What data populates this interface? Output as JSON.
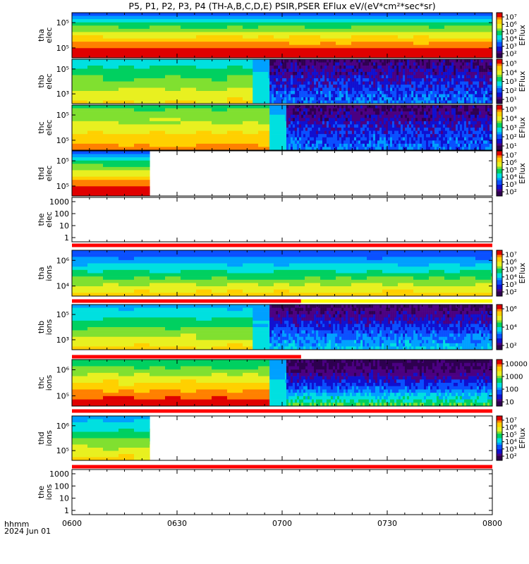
{
  "title": "P5, P1, P2, P3, P4 (TH-A,B,C,D,E) PSIR,PSER EFlux eV/(eV*cm²*sec*sr)",
  "time_axis": {
    "label_top": "hhmm",
    "label_bottom": "2024 Jun 01",
    "ticks": [
      "0600",
      "0630",
      "0700",
      "0730",
      "0800"
    ]
  },
  "colors": {
    "colormap": [
      "#2e0050",
      "#4b0082",
      "#1010d0",
      "#0a50ff",
      "#00a0ff",
      "#00e0e0",
      "#00d060",
      "#80e030",
      "#e8f020",
      "#ffd000",
      "#ff8000",
      "#e00000"
    ],
    "bar_red": "#ff0000",
    "bar_yellow": "#ffff00"
  },
  "chart_data": [
    {
      "type": "heatmap",
      "probe": "tha",
      "species": "elec",
      "ylabel": [
        "tha",
        "elec"
      ],
      "ytick_labels": [
        "10⁵",
        "10⁵"
      ],
      "colorbar": {
        "label": "EFlux",
        "tick_labels": [
          "10⁷",
          "10⁶",
          "10⁵",
          "10⁴",
          "10³",
          "10²"
        ]
      },
      "data_coverage": [
        0,
        1
      ],
      "segments": [
        {
          "from": 0.0,
          "to": 1.0,
          "profile": "smooth_high"
        }
      ],
      "mode_bar": null
    },
    {
      "type": "heatmap",
      "probe": "thb",
      "species": "elec",
      "ylabel": [
        "thb",
        "elec"
      ],
      "ytick_labels": [
        "10⁵",
        "10³"
      ],
      "colorbar": {
        "label": "EFlux",
        "tick_labels": [
          "10⁵",
          "10⁴",
          "10³",
          "10²",
          "10¹"
        ]
      },
      "data_coverage": [
        0,
        1
      ],
      "segments": [
        {
          "from": 0.0,
          "to": 0.43,
          "profile": "mid"
        },
        {
          "from": 0.43,
          "to": 0.47,
          "profile": "transition"
        },
        {
          "from": 0.47,
          "to": 1.0,
          "profile": "noisy_low"
        }
      ],
      "mode_bar": null
    },
    {
      "type": "heatmap",
      "probe": "thc",
      "species": "elec",
      "ylabel": [
        "thc",
        "elec"
      ],
      "ytick_labels": [
        "10⁵",
        "10⁵"
      ],
      "colorbar": {
        "label": "EFlux",
        "tick_labels": [
          "10⁵",
          "10⁴",
          "10³",
          "10²",
          "10¹"
        ]
      },
      "data_coverage": [
        0,
        1
      ],
      "segments": [
        {
          "from": 0.0,
          "to": 0.47,
          "profile": "mid_high"
        },
        {
          "from": 0.47,
          "to": 0.51,
          "profile": "transition"
        },
        {
          "from": 0.51,
          "to": 1.0,
          "profile": "noisy_low"
        }
      ],
      "mode_bar": null
    },
    {
      "type": "heatmap",
      "probe": "thd",
      "species": "elec",
      "ylabel": [
        "thd",
        "elec"
      ],
      "ytick_labels": [
        "10⁵",
        "10⁵"
      ],
      "colorbar": {
        "label": "EFlux",
        "tick_labels": [
          "10⁷",
          "10⁶",
          "10⁵",
          "10⁴",
          "10³",
          "10²"
        ]
      },
      "data_coverage": [
        0,
        0.185
      ],
      "segments": [
        {
          "from": 0.0,
          "to": 0.185,
          "profile": "smooth_high"
        }
      ],
      "mode_bar": null
    },
    {
      "type": "empty",
      "probe": "the",
      "species": "elec",
      "ylabel": [
        "the",
        "elec"
      ],
      "ytick_labels": [
        "1000",
        "100",
        "10",
        "1"
      ],
      "ylim": [
        1,
        1000
      ],
      "colorbar": null,
      "mode_bar": {
        "segments": [
          {
            "from": 0,
            "to": 1,
            "color": "red"
          }
        ]
      }
    },
    {
      "type": "heatmap",
      "probe": "tha",
      "species": "ions",
      "ylabel": [
        "tha",
        "ions"
      ],
      "ytick_labels": [
        "10⁶",
        "10⁴"
      ],
      "colorbar": {
        "label": "EFlux",
        "tick_labels": [
          "10⁷",
          "10⁶",
          "10⁵",
          "10⁴",
          "10³",
          "10²"
        ]
      },
      "data_coverage": [
        0,
        1
      ],
      "segments": [
        {
          "from": 0.0,
          "to": 1.0,
          "profile": "ion_smooth"
        }
      ],
      "mode_bar": {
        "segments": [
          {
            "from": 0,
            "to": 0.545,
            "color": "red"
          },
          {
            "from": 0.545,
            "to": 1,
            "color": "yellow"
          }
        ]
      }
    },
    {
      "type": "heatmap",
      "probe": "thb",
      "species": "ions",
      "ylabel": [
        "thb",
        "ions"
      ],
      "ytick_labels": [
        "10⁵",
        "10³"
      ],
      "colorbar": {
        "label": "",
        "tick_labels": [
          "10⁶",
          "10⁴",
          "10²"
        ]
      },
      "data_coverage": [
        0,
        1
      ],
      "segments": [
        {
          "from": 0.0,
          "to": 0.43,
          "profile": "ion_mid"
        },
        {
          "from": 0.43,
          "to": 0.47,
          "profile": "transition"
        },
        {
          "from": 0.47,
          "to": 1.0,
          "profile": "ion_noisy"
        }
      ],
      "mode_bar": {
        "segments": [
          {
            "from": 0,
            "to": 0.545,
            "color": "red"
          }
        ]
      }
    },
    {
      "type": "heatmap",
      "probe": "thc",
      "species": "ions",
      "ylabel": [
        "thc",
        "ions"
      ],
      "ytick_labels": [
        "10⁶",
        "10⁵"
      ],
      "colorbar": {
        "label": "",
        "tick_labels": [
          "10000",
          "1000",
          "100",
          "10"
        ]
      },
      "data_coverage": [
        0,
        1
      ],
      "segments": [
        {
          "from": 0.0,
          "to": 0.47,
          "profile": "ion_hot"
        },
        {
          "from": 0.47,
          "to": 0.51,
          "profile": "transition"
        },
        {
          "from": 0.51,
          "to": 1.0,
          "profile": "ion_noisy_green"
        }
      ],
      "mode_bar": {
        "segments": [
          {
            "from": 0,
            "to": 1,
            "color": "red"
          }
        ]
      }
    },
    {
      "type": "heatmap",
      "probe": "thd",
      "species": "ions",
      "ylabel": [
        "thd",
        "ions"
      ],
      "ytick_labels": [
        "10⁶",
        "10⁵"
      ],
      "colorbar": {
        "label": "EFlux",
        "tick_labels": [
          "10⁷",
          "10⁶",
          "10⁵",
          "10⁴",
          "10³",
          "10²"
        ]
      },
      "data_coverage": [
        0,
        0.185
      ],
      "segments": [
        {
          "from": 0.0,
          "to": 0.185,
          "profile": "ion_mid"
        }
      ],
      "mode_bar": {
        "segments": [
          {
            "from": 0,
            "to": 1,
            "color": "red"
          }
        ]
      }
    },
    {
      "type": "empty",
      "probe": "the",
      "species": "ions",
      "ylabel": [
        "the",
        "ions"
      ],
      "ytick_labels": [
        "1000",
        "100",
        "10",
        "1"
      ],
      "ylim": [
        1,
        1000
      ],
      "colorbar": null,
      "mode_bar": null
    }
  ]
}
